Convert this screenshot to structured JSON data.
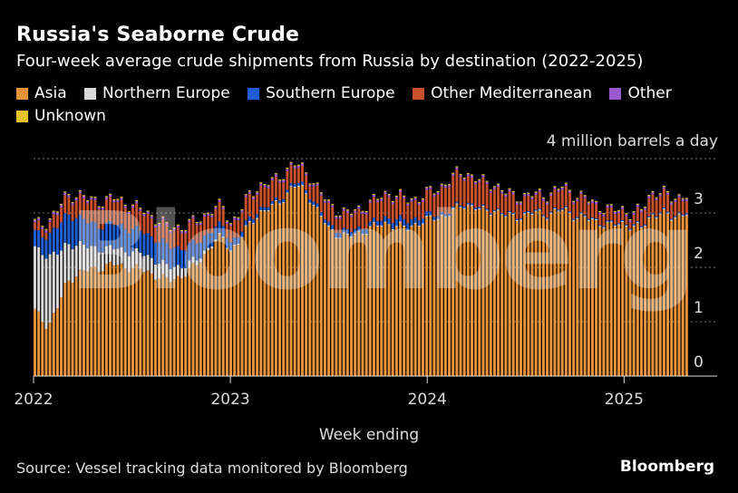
{
  "title": "Russia's Seaborne Crude",
  "subtitle": "Four-week average crude shipments from Russia by destination (2022-2025)",
  "brand": "Bloomberg",
  "watermark": "Bloomberg",
  "source": "Source: Vessel tracking data monitored by Bloomberg",
  "legend": [
    {
      "name": "Asia",
      "color": "#E8923A"
    },
    {
      "name": "Northern Europe",
      "color": "#D9D9D9"
    },
    {
      "name": "Southern Europe",
      "color": "#1F5FD6"
    },
    {
      "name": "Other Mediterranean",
      "color": "#C8502A"
    },
    {
      "name": "Other",
      "color": "#9B59D0"
    },
    {
      "name": "Unknown",
      "color": "#E6C229"
    }
  ],
  "chart_data": {
    "type": "bar",
    "stacked": true,
    "title": "Russia's Seaborne Crude",
    "ylabel": "4 million barrels a day",
    "xlabel": "Week ending",
    "ylim": [
      0,
      4
    ],
    "yticks": [
      "0",
      "1",
      "2",
      "3"
    ],
    "xticks": [
      {
        "label": "2022",
        "at": 2022.0
      },
      {
        "label": "2023",
        "at": 2023.0
      },
      {
        "label": "2024",
        "at": 2024.0
      },
      {
        "label": "2025",
        "at": 2025.0
      }
    ],
    "x_range": [
      2022.0,
      2025.33
    ],
    "anchors": {
      "t": [
        2022.0,
        2022.03,
        2022.06,
        2022.08,
        2022.12,
        2022.16,
        2022.22,
        2022.28,
        2022.34,
        2022.4,
        2022.48,
        2022.55,
        2022.62,
        2022.68,
        2022.72,
        2022.78,
        2022.84,
        2022.9,
        2022.96,
        2023.0,
        2023.05,
        2023.1,
        2023.15,
        2023.22,
        2023.28,
        2023.32,
        2023.36,
        2023.4,
        2023.45,
        2023.5,
        2023.55,
        2023.6,
        2023.65,
        2023.7,
        2023.75,
        2023.8,
        2023.85,
        2023.9,
        2023.95,
        2024.0,
        2024.05,
        2024.1,
        2024.15,
        2024.2,
        2024.25,
        2024.3,
        2024.35,
        2024.4,
        2024.45,
        2024.5,
        2024.55,
        2024.6,
        2024.65,
        2024.7,
        2024.75,
        2024.8,
        2024.85,
        2024.9,
        2024.95,
        2025.0,
        2025.05,
        2025.1,
        2025.15,
        2025.2,
        2025.25,
        2025.33
      ],
      "asia": [
        1.2,
        1.05,
        0.95,
        1.0,
        1.3,
        1.7,
        1.9,
        1.95,
        2.0,
        2.05,
        2.0,
        1.95,
        1.85,
        1.75,
        1.8,
        1.9,
        2.1,
        2.4,
        2.55,
        2.3,
        2.5,
        2.8,
        3.0,
        3.1,
        3.3,
        3.5,
        3.45,
        3.3,
        3.0,
        2.7,
        2.6,
        2.55,
        2.6,
        2.7,
        2.75,
        2.8,
        2.75,
        2.7,
        2.8,
        2.85,
        2.9,
        2.95,
        3.05,
        3.15,
        3.1,
        3.0,
        3.05,
        2.95,
        2.9,
        2.95,
        3.0,
        2.95,
        3.0,
        3.05,
        2.95,
        2.9,
        2.85,
        2.8,
        2.75,
        2.8,
        2.75,
        2.7,
        2.95,
        3.0,
        2.9,
        3.0
      ],
      "northern_europe": [
        1.15,
        1.2,
        1.3,
        1.25,
        0.95,
        0.7,
        0.55,
        0.4,
        0.35,
        0.3,
        0.3,
        0.3,
        0.28,
        0.25,
        0.22,
        0.15,
        0.08,
        0.04,
        0.02,
        0.02,
        0.02,
        0.02,
        0.02,
        0.02,
        0.02,
        0.02,
        0.02,
        0.02,
        0.02,
        0.02,
        0.02,
        0.02,
        0.02,
        0.02,
        0.02,
        0.02,
        0.02,
        0.02,
        0.02,
        0.02,
        0.02,
        0.02,
        0.02,
        0.02,
        0.02,
        0.02,
        0.02,
        0.02,
        0.02,
        0.02,
        0.02,
        0.02,
        0.02,
        0.02,
        0.02,
        0.02,
        0.02,
        0.02,
        0.02,
        0.02,
        0.02,
        0.02,
        0.02,
        0.02,
        0.02,
        0.02
      ],
      "southern_europe": [
        0.3,
        0.32,
        0.35,
        0.4,
        0.5,
        0.55,
        0.5,
        0.45,
        0.42,
        0.45,
        0.42,
        0.4,
        0.4,
        0.38,
        0.35,
        0.32,
        0.3,
        0.25,
        0.2,
        0.15,
        0.1,
        0.08,
        0.06,
        0.05,
        0.05,
        0.05,
        0.05,
        0.06,
        0.06,
        0.07,
        0.08,
        0.08,
        0.08,
        0.08,
        0.08,
        0.1,
        0.12,
        0.12,
        0.1,
        0.08,
        0.05,
        0.04,
        0.03,
        0.03,
        0.03,
        0.02,
        0.02,
        0.02,
        0.02,
        0.02,
        0.02,
        0.02,
        0.02,
        0.02,
        0.02,
        0.02,
        0.02,
        0.02,
        0.02,
        0.02,
        0.02,
        0.02,
        0.02,
        0.02,
        0.02,
        0.02
      ],
      "other_med": [
        0.12,
        0.15,
        0.18,
        0.2,
        0.25,
        0.3,
        0.35,
        0.38,
        0.4,
        0.42,
        0.4,
        0.35,
        0.32,
        0.3,
        0.32,
        0.35,
        0.35,
        0.32,
        0.3,
        0.3,
        0.35,
        0.4,
        0.38,
        0.35,
        0.35,
        0.3,
        0.25,
        0.28,
        0.3,
        0.32,
        0.3,
        0.28,
        0.3,
        0.32,
        0.35,
        0.4,
        0.38,
        0.35,
        0.3,
        0.35,
        0.4,
        0.5,
        0.55,
        0.5,
        0.45,
        0.45,
        0.4,
        0.35,
        0.3,
        0.28,
        0.25,
        0.28,
        0.3,
        0.35,
        0.32,
        0.3,
        0.25,
        0.22,
        0.2,
        0.18,
        0.15,
        0.25,
        0.35,
        0.3,
        0.28,
        0.25
      ],
      "other": [
        0.04,
        0.04,
        0.05,
        0.05,
        0.05,
        0.05,
        0.04,
        0.04,
        0.04,
        0.04,
        0.04,
        0.04,
        0.04,
        0.04,
        0.04,
        0.04,
        0.04,
        0.04,
        0.04,
        0.04,
        0.04,
        0.04,
        0.04,
        0.04,
        0.04,
        0.04,
        0.04,
        0.04,
        0.04,
        0.04,
        0.04,
        0.04,
        0.04,
        0.04,
        0.04,
        0.04,
        0.04,
        0.04,
        0.04,
        0.04,
        0.04,
        0.04,
        0.04,
        0.04,
        0.04,
        0.04,
        0.04,
        0.04,
        0.04,
        0.04,
        0.04,
        0.04,
        0.04,
        0.04,
        0.04,
        0.04,
        0.04,
        0.04,
        0.04,
        0.04,
        0.04,
        0.04,
        0.04,
        0.04,
        0.04,
        0.04
      ],
      "unknown": [
        0.02,
        0.02,
        0.02,
        0.02,
        0.02,
        0.02,
        0.02,
        0.02,
        0.02,
        0.02,
        0.02,
        0.02,
        0.02,
        0.02,
        0.02,
        0.02,
        0.02,
        0.02,
        0.02,
        0.02,
        0.02,
        0.02,
        0.02,
        0.02,
        0.02,
        0.02,
        0.02,
        0.02,
        0.02,
        0.02,
        0.02,
        0.02,
        0.02,
        0.02,
        0.02,
        0.02,
        0.02,
        0.02,
        0.02,
        0.02,
        0.02,
        0.02,
        0.02,
        0.02,
        0.02,
        0.02,
        0.02,
        0.02,
        0.02,
        0.02,
        0.02,
        0.02,
        0.02,
        0.02,
        0.02,
        0.02,
        0.02,
        0.02,
        0.02,
        0.02,
        0.02,
        0.02,
        0.02,
        0.02,
        0.02,
        0.02
      ]
    }
  }
}
